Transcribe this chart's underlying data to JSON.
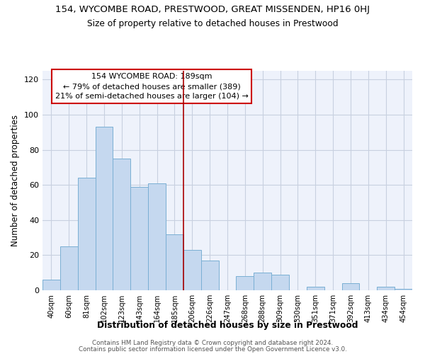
{
  "title": "154, WYCOMBE ROAD, PRESTWOOD, GREAT MISSENDEN, HP16 0HJ",
  "subtitle": "Size of property relative to detached houses in Prestwood",
  "xlabel": "Distribution of detached houses by size in Prestwood",
  "ylabel": "Number of detached properties",
  "bar_labels": [
    "40sqm",
    "60sqm",
    "81sqm",
    "102sqm",
    "123sqm",
    "143sqm",
    "164sqm",
    "185sqm",
    "206sqm",
    "226sqm",
    "247sqm",
    "268sqm",
    "288sqm",
    "309sqm",
    "330sqm",
    "351sqm",
    "371sqm",
    "392sqm",
    "413sqm",
    "434sqm",
    "454sqm"
  ],
  "bar_heights": [
    6,
    25,
    64,
    93,
    75,
    59,
    61,
    32,
    23,
    17,
    0,
    8,
    10,
    9,
    0,
    2,
    0,
    4,
    0,
    2,
    1
  ],
  "bar_color": "#c5d8ef",
  "bar_edge_color": "#7aafd4",
  "vline_color": "#aa0000",
  "annotation_title": "154 WYCOMBE ROAD: 189sqm",
  "annotation_line1": "← 79% of detached houses are smaller (389)",
  "annotation_line2": "21% of semi-detached houses are larger (104) →",
  "annotation_box_edge": "#cc0000",
  "footer1": "Contains HM Land Registry data © Crown copyright and database right 2024.",
  "footer2": "Contains public sector information licensed under the Open Government Licence v3.0.",
  "ylim": [
    0,
    125
  ],
  "yticks": [
    0,
    20,
    40,
    60,
    80,
    100,
    120
  ],
  "bg_color": "#eef2fb",
  "grid_color": "#c8d0e0"
}
